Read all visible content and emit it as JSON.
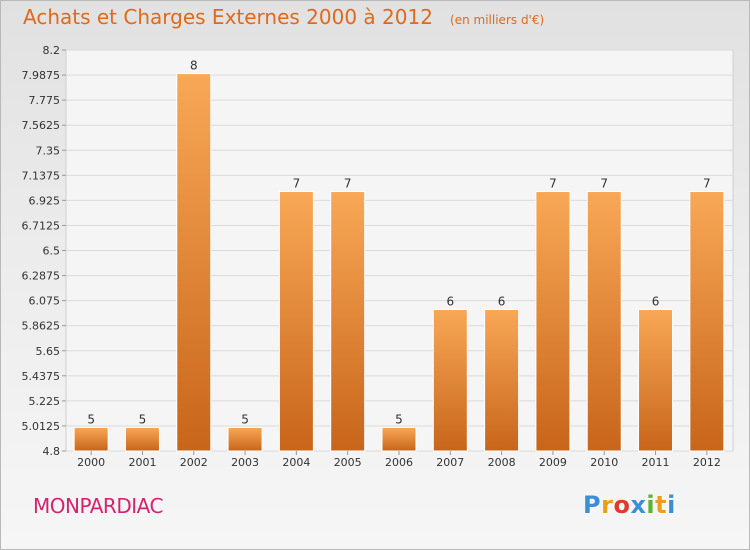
{
  "title": "Achats et Charges Externes 2000 à 2012",
  "subtitle": "(en milliers d'€)",
  "commune": "MONPARDIAC",
  "logo": {
    "letters": [
      "P",
      "r",
      "o",
      "x",
      "i",
      "t",
      "i"
    ],
    "colors": [
      "#3a8fd6",
      "#e8a019",
      "#e2392c",
      "#3a8fd6",
      "#5cb531",
      "#e8a019",
      "#3a8fd6"
    ]
  },
  "colors": {
    "bar_top": "#f8a856",
    "bar_bottom": "#c8651a",
    "accent": "#e0691c"
  },
  "chart_data": {
    "type": "bar",
    "categories": [
      "2000",
      "2001",
      "2002",
      "2003",
      "2004",
      "2005",
      "2006",
      "2007",
      "2008",
      "2009",
      "2010",
      "2011",
      "2012"
    ],
    "values": [
      5,
      5,
      8,
      5,
      7,
      7,
      5,
      6,
      6,
      7,
      7,
      6,
      7
    ],
    "data_labels": [
      "5",
      "5",
      "8",
      "5",
      "7",
      "7",
      "5",
      "6",
      "6",
      "7",
      "7",
      "6",
      "7"
    ],
    "yticks": [
      "8.2",
      "7.9875",
      "7.775",
      "7.5625",
      "7.35",
      "7.1375",
      "6.925",
      "6.7125",
      "6.5",
      "6.2875",
      "6.075",
      "5.8625",
      "5.65",
      "5.4375",
      "5.225",
      "5.0125",
      "4.8"
    ],
    "ylim": [
      4.8,
      8.2
    ],
    "xlabel": "",
    "ylabel": "",
    "grid": true
  }
}
